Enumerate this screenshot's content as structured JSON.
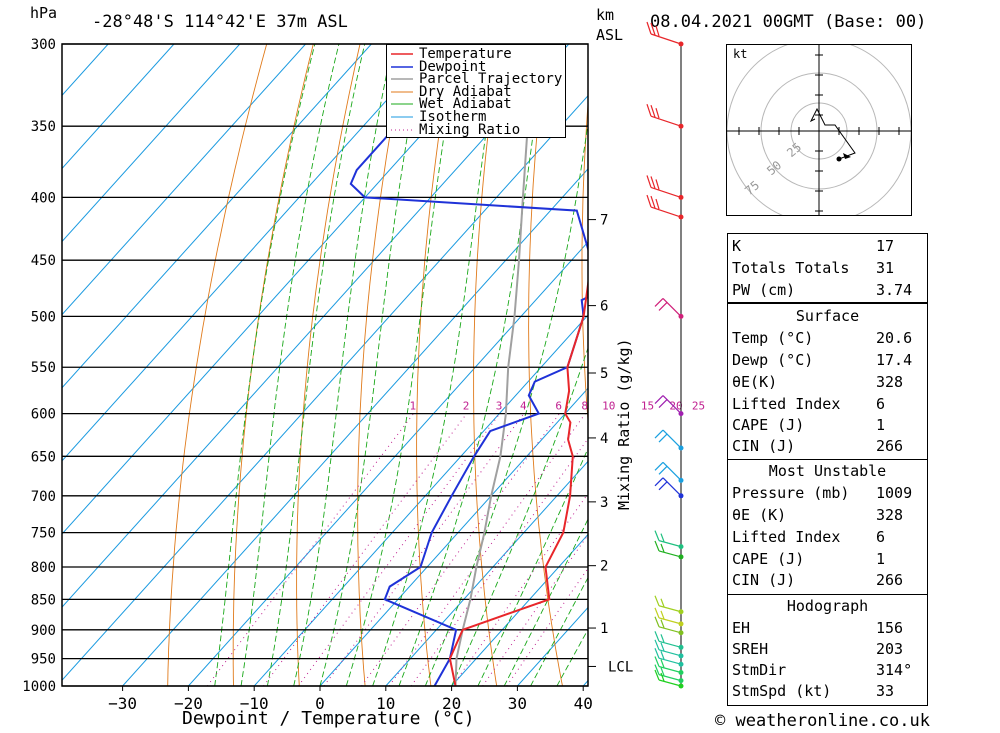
{
  "header": {
    "pressure_unit": "hPa",
    "location": "-28°48'S  114°42'E  37m  ASL",
    "height_unit_line1": "km",
    "height_unit_line2": "ASL",
    "datetime": "08.04.2021  00GMT  (Base: 00)"
  },
  "chart_data": {
    "type": "skew-t",
    "xlabel": "Dewpoint / Temperature (°C)",
    "ylabel_right": "Mixing Ratio (g/kg)",
    "x_ticks": [
      -30,
      -20,
      -10,
      0,
      10,
      20,
      30,
      40
    ],
    "pressure_levels": [
      300,
      350,
      400,
      450,
      500,
      550,
      600,
      650,
      700,
      750,
      800,
      850,
      900,
      950,
      1000
    ],
    "km_ticks": [
      {
        "label": "7",
        "p": 417
      },
      {
        "label": "6",
        "p": 490
      },
      {
        "label": "5",
        "p": 556
      },
      {
        "label": "4",
        "p": 628
      },
      {
        "label": "3",
        "p": 708
      },
      {
        "label": "2",
        "p": 798
      },
      {
        "label": "1",
        "p": 897
      },
      {
        "label": "LCL",
        "p": 964
      }
    ],
    "mixing_ratio_labels": [
      "1",
      "2",
      "3",
      "4",
      "6",
      "8",
      "10",
      "15",
      "20",
      "25"
    ],
    "legend": [
      "Temperature",
      "Dewpoint",
      "Parcel Trajectory",
      "Dry Adiabat",
      "Wet Adiabat",
      "Isotherm",
      "Mixing Ratio"
    ],
    "series": {
      "temperature": [
        [
          1000,
          20.6
        ],
        [
          950,
          16
        ],
        [
          900,
          14
        ],
        [
          850,
          23
        ],
        [
          800,
          18
        ],
        [
          750,
          16
        ],
        [
          700,
          12
        ],
        [
          650,
          7
        ],
        [
          630,
          4
        ],
        [
          610,
          2
        ],
        [
          600,
          0
        ],
        [
          575,
          -2.5
        ],
        [
          550,
          -6
        ],
        [
          500,
          -10.5
        ],
        [
          450,
          -17
        ],
        [
          410,
          -23.5
        ],
        [
          400,
          -25
        ],
        [
          380,
          -26
        ],
        [
          350,
          -33
        ],
        [
          330,
          -37
        ]
      ],
      "dewpoint": [
        [
          1000,
          17.4
        ],
        [
          950,
          16
        ],
        [
          900,
          13
        ],
        [
          850,
          -2
        ],
        [
          830,
          -3
        ],
        [
          800,
          -1
        ],
        [
          750,
          -4
        ],
        [
          700,
          -6
        ],
        [
          650,
          -8
        ],
        [
          620,
          -9
        ],
        [
          600,
          -4
        ],
        [
          580,
          -8
        ],
        [
          565,
          -9
        ],
        [
          550,
          -6
        ],
        [
          500,
          -10.5
        ],
        [
          485,
          -13
        ],
        [
          475,
          -11
        ],
        [
          450,
          -17
        ],
        [
          410,
          -26
        ],
        [
          400,
          -60
        ],
        [
          390,
          -64
        ],
        [
          380,
          -65
        ],
        [
          350,
          -65
        ],
        [
          300,
          -65
        ]
      ],
      "parcel": [
        [
          1000,
          20.6
        ],
        [
          950,
          17
        ],
        [
          900,
          14
        ],
        [
          850,
          11
        ],
        [
          800,
          7.5
        ],
        [
          750,
          4
        ],
        [
          700,
          0
        ],
        [
          650,
          -4
        ],
        [
          600,
          -9
        ],
        [
          550,
          -15
        ],
        [
          500,
          -21
        ],
        [
          450,
          -28
        ],
        [
          400,
          -36
        ],
        [
          350,
          -45
        ],
        [
          300,
          -55
        ]
      ]
    }
  },
  "hodograph": {
    "unit_label": "kt",
    "ring_labels": [
      "25",
      "50",
      "75"
    ]
  },
  "indices": [
    {
      "k": "K",
      "v": "17"
    },
    {
      "k": "Totals Totals",
      "v": "31"
    },
    {
      "k": "PW (cm)",
      "v": "3.74"
    }
  ],
  "surface": {
    "title": "Surface",
    "rows": [
      {
        "k": "Temp (°C)",
        "v": "20.6"
      },
      {
        "k": "Dewp (°C)",
        "v": "17.4"
      },
      {
        "k": "θE(K)",
        "v": "328"
      },
      {
        "k": "Lifted Index",
        "v": "6"
      },
      {
        "k": "CAPE (J)",
        "v": "1"
      },
      {
        "k": "CIN (J)",
        "v": "266"
      }
    ]
  },
  "most_unstable": {
    "title": "Most Unstable",
    "rows": [
      {
        "k": "Pressure (mb)",
        "v": "1009"
      },
      {
        "k": "θE (K)",
        "v": "328"
      },
      {
        "k": "Lifted Index",
        "v": "6"
      },
      {
        "k": "CAPE (J)",
        "v": "1"
      },
      {
        "k": "CIN (J)",
        "v": "266"
      }
    ]
  },
  "hodograph_table": {
    "title": "Hodograph",
    "rows": [
      {
        "k": "EH",
        "v": "156"
      },
      {
        "k": "SREH",
        "v": "203"
      },
      {
        "k": "StmDir",
        "v": "314°"
      },
      {
        "k": "StmSpd (kt)",
        "v": "33"
      }
    ]
  },
  "footer": "© weatheronline.co.uk",
  "colors": {
    "temperature": "#e8262a",
    "dewpoint": "#1f32d8",
    "parcel": "#a0a0a0",
    "dry_adiabat": "#e07a1a",
    "wet_adiabat": "#1aa81a",
    "isotherm": "#1a9ae0",
    "mixing_ratio": "#c02090"
  }
}
